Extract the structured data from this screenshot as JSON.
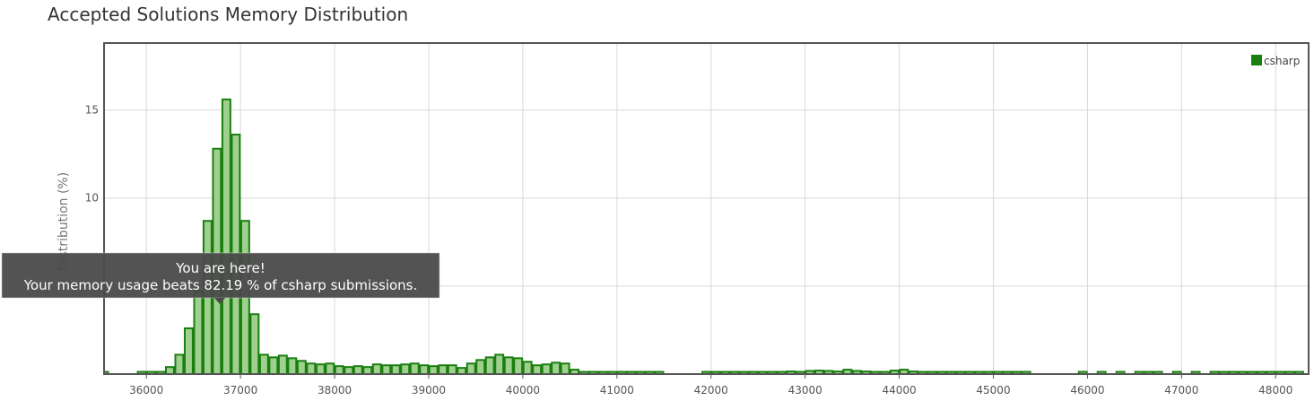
{
  "title": "Accepted Solutions Memory Distribution",
  "colors": {
    "bar_fill": "#9fd08f",
    "bar_stroke": "#1a7f0f",
    "legend_swatch": "#1a7f0f",
    "grid": "#d9d9d9",
    "frame": "#555555",
    "tooltip_bg": "#4a4a4a",
    "tooltip_text": "#ffffff"
  },
  "tooltip": {
    "line1": "You are here!",
    "line2": "Your memory usage beats 82.19 % of csharp submissions."
  },
  "chart_data": {
    "type": "bar",
    "title": "Accepted Solutions Memory Distribution",
    "xlabel": "",
    "ylabel": "Distribution (%)",
    "xlim": [
      35550,
      48350
    ],
    "ylim": [
      0,
      18.8
    ],
    "bin_width": 100,
    "x_ticks": [
      36000,
      37000,
      38000,
      39000,
      40000,
      41000,
      42000,
      43000,
      44000,
      45000,
      46000,
      47000,
      48000
    ],
    "y_ticks": [
      5,
      10,
      15
    ],
    "y_tick_labels_shown": [
      "10",
      "15"
    ],
    "grid": true,
    "legend": {
      "position": "top-right",
      "entries": [
        "csharp"
      ]
    },
    "series": [
      {
        "name": "csharp",
        "x": [
          35550,
          35950,
          36050,
          36150,
          36250,
          36350,
          36450,
          36550,
          36650,
          36750,
          36850,
          36950,
          37050,
          37150,
          37250,
          37350,
          37450,
          37550,
          37650,
          37750,
          37850,
          37950,
          38050,
          38150,
          38250,
          38350,
          38450,
          38550,
          38650,
          38750,
          38850,
          38950,
          39050,
          39150,
          39250,
          39350,
          39450,
          39550,
          39650,
          39750,
          39850,
          39950,
          40050,
          40150,
          40250,
          40350,
          40450,
          40550,
          40650,
          40750,
          40850,
          40950,
          41050,
          41150,
          41250,
          41350,
          41450,
          41950,
          42050,
          42150,
          42250,
          42350,
          42450,
          42550,
          42650,
          42750,
          42850,
          42950,
          43050,
          43150,
          43250,
          43350,
          43450,
          43550,
          43650,
          43750,
          43850,
          43950,
          44050,
          44150,
          44250,
          44350,
          44450,
          44550,
          44650,
          44750,
          44850,
          44950,
          45050,
          45150,
          45250,
          45350,
          45950,
          46150,
          46350,
          46550,
          46650,
          46750,
          46950,
          47150,
          47350,
          47450,
          47550,
          47650,
          47750,
          47850,
          47950,
          48050,
          48150,
          48250
        ],
        "values": [
          0.1,
          0.05,
          0.08,
          0.12,
          0.4,
          1.1,
          2.6,
          4.7,
          8.7,
          12.8,
          15.6,
          13.6,
          8.7,
          3.4,
          1.1,
          0.95,
          1.05,
          0.9,
          0.75,
          0.6,
          0.55,
          0.6,
          0.45,
          0.4,
          0.45,
          0.4,
          0.55,
          0.5,
          0.5,
          0.55,
          0.6,
          0.5,
          0.45,
          0.5,
          0.5,
          0.35,
          0.6,
          0.8,
          0.95,
          1.1,
          0.95,
          0.9,
          0.7,
          0.5,
          0.55,
          0.65,
          0.6,
          0.25,
          0.05,
          0.05,
          0.08,
          0.05,
          0.08,
          0.05,
          0.05,
          0.08,
          0.1,
          0.05,
          0.05,
          0.08,
          0.05,
          0.08,
          0.1,
          0.05,
          0.05,
          0.1,
          0.15,
          0.1,
          0.18,
          0.2,
          0.18,
          0.15,
          0.25,
          0.18,
          0.15,
          0.1,
          0.12,
          0.2,
          0.25,
          0.15,
          0.12,
          0.12,
          0.05,
          0.05,
          0.08,
          0.05,
          0.12,
          0.05,
          0.08,
          0.1,
          0.08,
          0.05,
          0.05,
          0.08,
          0.05,
          0.08,
          0.05,
          0.05,
          0.08,
          0.1,
          0.05,
          0.08,
          0.05,
          0.08,
          0.1,
          0.1,
          0.05,
          0.08,
          0.1,
          0.1
        ]
      }
    ],
    "highlight_x": 36950
  }
}
